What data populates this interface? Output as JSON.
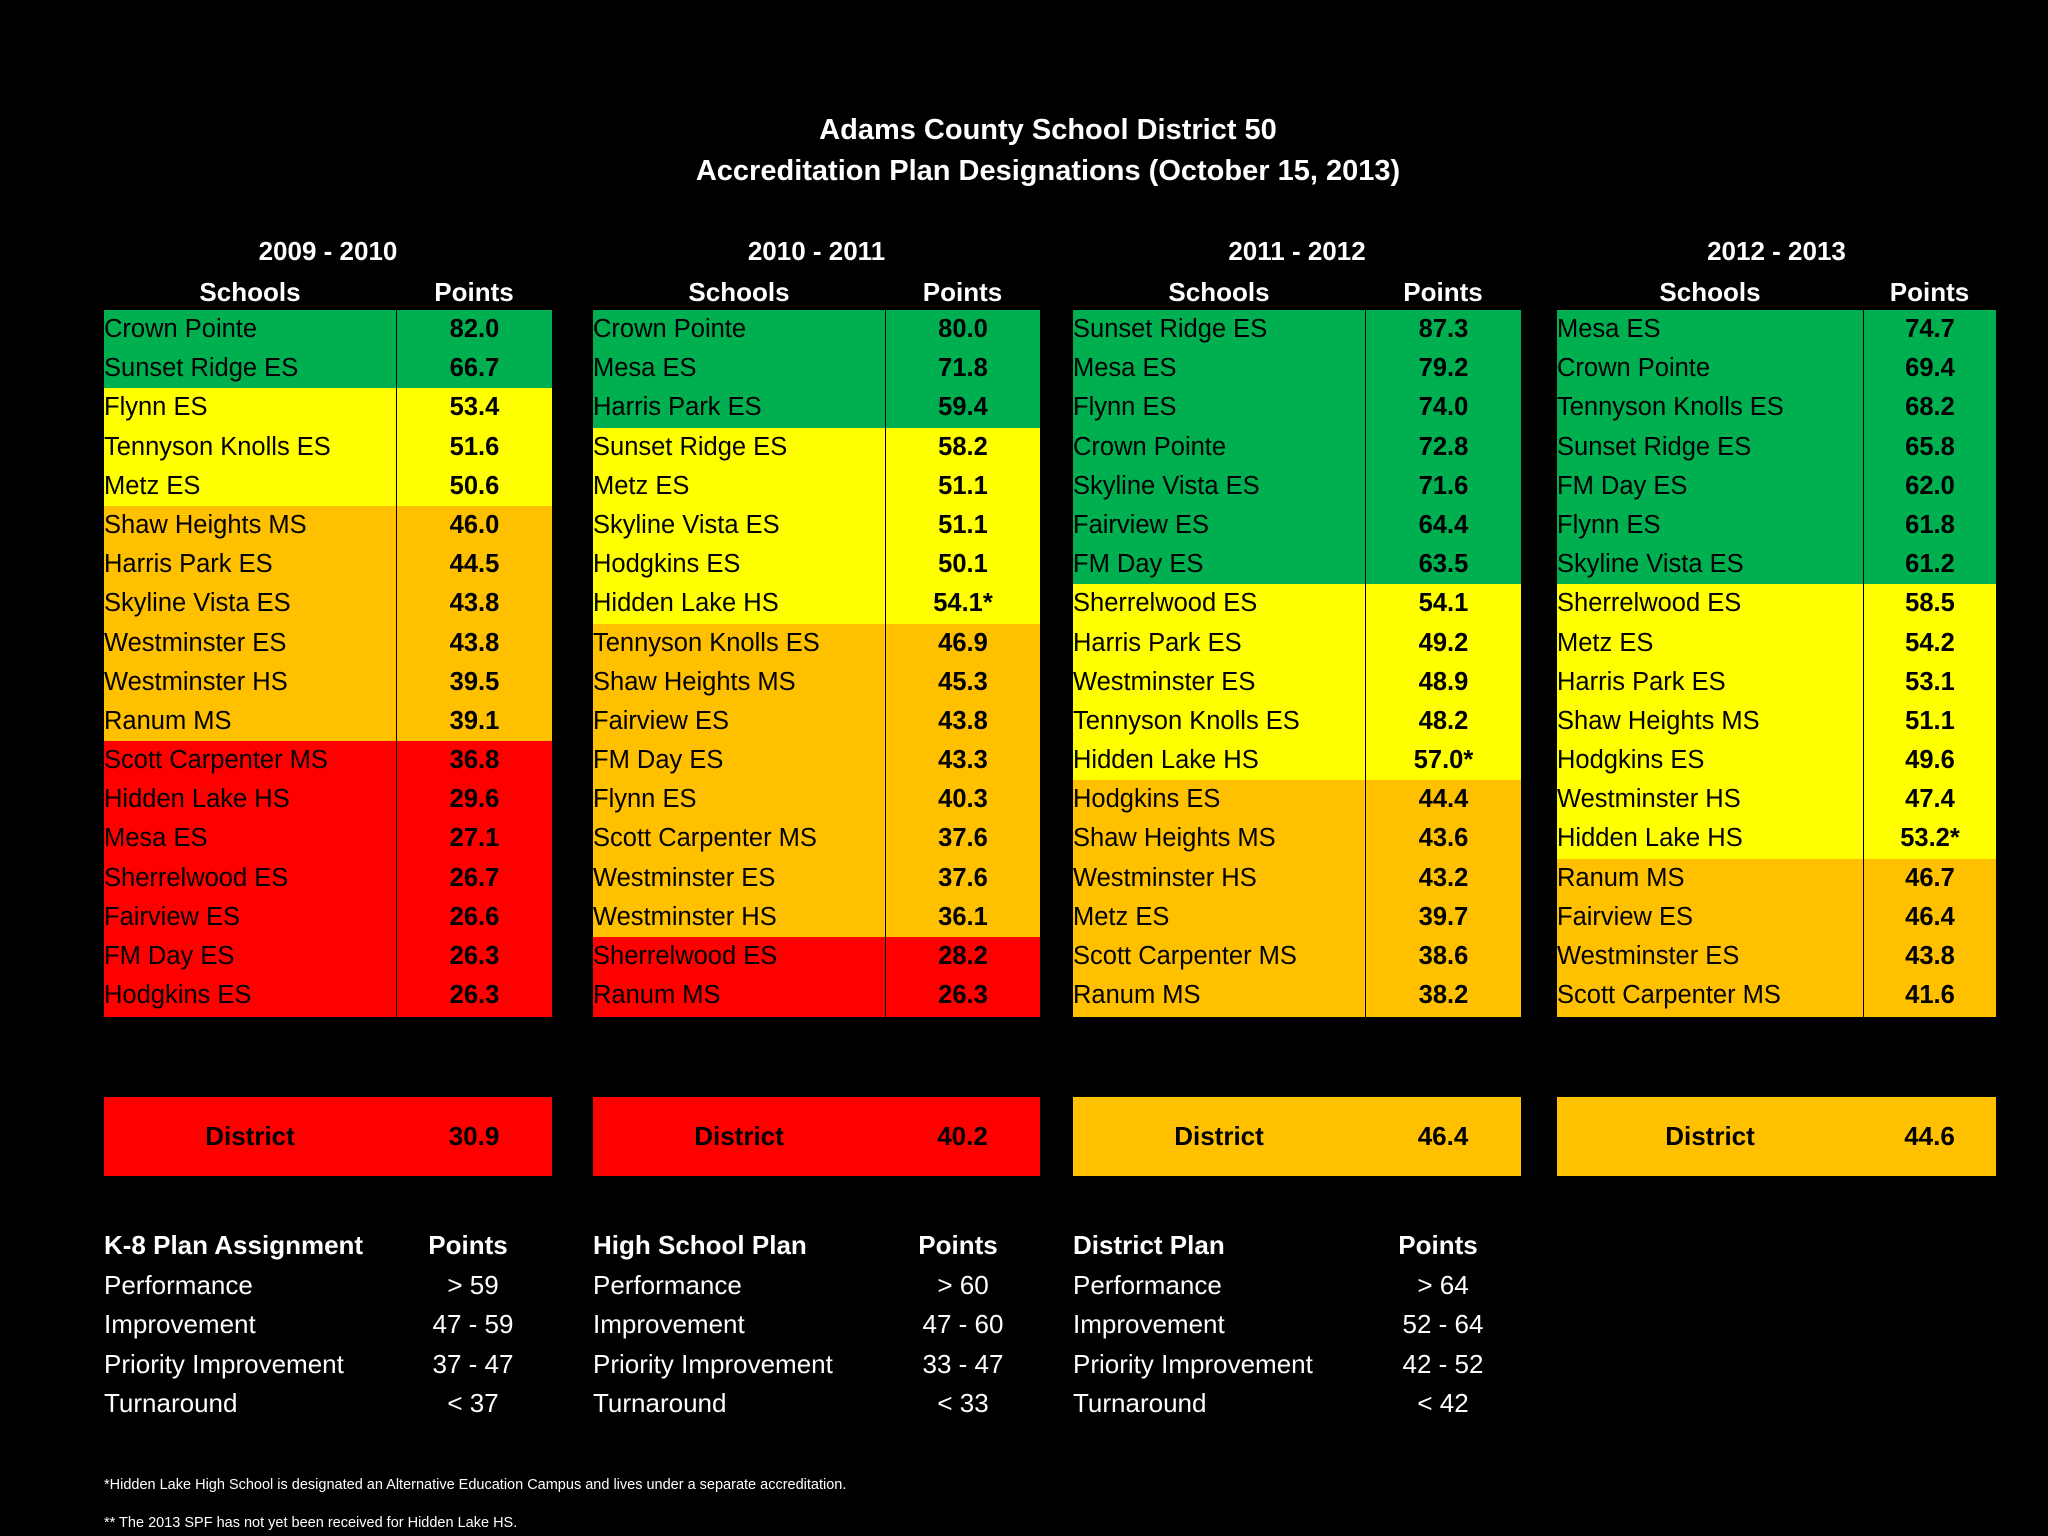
{
  "title": {
    "line1": "Adams County School District 50",
    "line2": "Accreditation Plan Designations (October 15, 2013)"
  },
  "colors": {
    "performance": "#00B050",
    "improvement": "#FFFF00",
    "priority_improvement": "#FFC000",
    "turnaround": "#FF0000"
  },
  "years": [
    {
      "label": "2009 - 2010",
      "schools_header": "Schools",
      "points_header": "Points",
      "rows": [
        {
          "school": "Crown Pointe",
          "points": "82.0",
          "rating": "performance"
        },
        {
          "school": "Sunset Ridge ES",
          "points": "66.7",
          "rating": "performance"
        },
        {
          "school": "Flynn ES",
          "points": "53.4",
          "rating": "improvement"
        },
        {
          "school": "Tennyson Knolls ES",
          "points": "51.6",
          "rating": "improvement"
        },
        {
          "school": "Metz ES",
          "points": "50.6",
          "rating": "improvement"
        },
        {
          "school": "Shaw Heights MS",
          "points": "46.0",
          "rating": "priority_improvement"
        },
        {
          "school": "Harris Park ES",
          "points": "44.5",
          "rating": "priority_improvement"
        },
        {
          "school": "Skyline Vista ES",
          "points": "43.8",
          "rating": "priority_improvement"
        },
        {
          "school": "Westminster ES",
          "points": "43.8",
          "rating": "priority_improvement"
        },
        {
          "school": "Westminster HS",
          "points": "39.5",
          "rating": "priority_improvement"
        },
        {
          "school": "Ranum MS",
          "points": "39.1",
          "rating": "priority_improvement"
        },
        {
          "school": "Scott Carpenter MS",
          "points": "36.8",
          "rating": "turnaround"
        },
        {
          "school": "Hidden Lake HS",
          "points": "29.6",
          "rating": "turnaround"
        },
        {
          "school": "Mesa ES",
          "points": "27.1",
          "rating": "turnaround"
        },
        {
          "school": "Sherrelwood ES",
          "points": "26.7",
          "rating": "turnaround"
        },
        {
          "school": "Fairview ES",
          "points": "26.6",
          "rating": "turnaround"
        },
        {
          "school": "FM Day ES",
          "points": "26.3",
          "rating": "turnaround"
        },
        {
          "school": "Hodgkins ES",
          "points": "26.3",
          "rating": "turnaround"
        }
      ],
      "district": {
        "label": "District",
        "points": "30.9",
        "rating": "turnaround"
      }
    },
    {
      "label": "2010 - 2011",
      "schools_header": "Schools",
      "points_header": "Points",
      "rows": [
        {
          "school": "Crown Pointe",
          "points": "80.0",
          "rating": "performance"
        },
        {
          "school": "Mesa ES",
          "points": "71.8",
          "rating": "performance"
        },
        {
          "school": "Harris Park ES",
          "points": "59.4",
          "rating": "performance"
        },
        {
          "school": "Sunset Ridge ES",
          "points": "58.2",
          "rating": "improvement"
        },
        {
          "school": "Metz ES",
          "points": "51.1",
          "rating": "improvement"
        },
        {
          "school": "Skyline Vista ES",
          "points": "51.1",
          "rating": "improvement"
        },
        {
          "school": "Hodgkins ES",
          "points": "50.1",
          "rating": "improvement"
        },
        {
          "school": "Hidden Lake HS",
          "points": "54.1*",
          "rating": "improvement"
        },
        {
          "school": "Tennyson Knolls ES",
          "points": "46.9",
          "rating": "priority_improvement"
        },
        {
          "school": "Shaw Heights MS",
          "points": "45.3",
          "rating": "priority_improvement"
        },
        {
          "school": "Fairview ES",
          "points": "43.8",
          "rating": "priority_improvement"
        },
        {
          "school": "FM Day ES",
          "points": "43.3",
          "rating": "priority_improvement"
        },
        {
          "school": "Flynn ES",
          "points": "40.3",
          "rating": "priority_improvement"
        },
        {
          "school": "Scott Carpenter MS",
          "points": "37.6",
          "rating": "priority_improvement"
        },
        {
          "school": "Westminster ES",
          "points": "37.6",
          "rating": "priority_improvement"
        },
        {
          "school": "Westminster HS",
          "points": "36.1",
          "rating": "priority_improvement"
        },
        {
          "school": "Sherrelwood ES",
          "points": "28.2",
          "rating": "turnaround"
        },
        {
          "school": "Ranum MS",
          "points": "26.3",
          "rating": "turnaround"
        }
      ],
      "district": {
        "label": "District",
        "points": "40.2",
        "rating": "turnaround"
      }
    },
    {
      "label": "2011 - 2012",
      "schools_header": "Schools",
      "points_header": "Points",
      "rows": [
        {
          "school": "Sunset Ridge ES",
          "points": "87.3",
          "rating": "performance"
        },
        {
          "school": "Mesa ES",
          "points": "79.2",
          "rating": "performance"
        },
        {
          "school": "Flynn ES",
          "points": "74.0",
          "rating": "performance"
        },
        {
          "school": "Crown Pointe",
          "points": "72.8",
          "rating": "performance"
        },
        {
          "school": "Skyline Vista ES",
          "points": "71.6",
          "rating": "performance"
        },
        {
          "school": "Fairview ES",
          "points": "64.4",
          "rating": "performance"
        },
        {
          "school": "FM Day ES",
          "points": "63.5",
          "rating": "performance"
        },
        {
          "school": "Sherrelwood ES",
          "points": "54.1",
          "rating": "improvement"
        },
        {
          "school": "Harris Park ES",
          "points": "49.2",
          "rating": "improvement"
        },
        {
          "school": "Westminster ES",
          "points": "48.9",
          "rating": "improvement"
        },
        {
          "school": "Tennyson Knolls ES",
          "points": "48.2",
          "rating": "improvement"
        },
        {
          "school": "Hidden Lake HS",
          "points": "57.0*",
          "rating": "improvement"
        },
        {
          "school": "Hodgkins ES",
          "points": "44.4",
          "rating": "priority_improvement"
        },
        {
          "school": "Shaw Heights MS",
          "points": "43.6",
          "rating": "priority_improvement"
        },
        {
          "school": "Westminster HS",
          "points": "43.2",
          "rating": "priority_improvement"
        },
        {
          "school": "Metz ES",
          "points": "39.7",
          "rating": "priority_improvement"
        },
        {
          "school": "Scott Carpenter MS",
          "points": "38.6",
          "rating": "priority_improvement"
        },
        {
          "school": "Ranum MS",
          "points": "38.2",
          "rating": "priority_improvement"
        }
      ],
      "district": {
        "label": "District",
        "points": "46.4",
        "rating": "priority_improvement"
      }
    },
    {
      "label": "2012 - 2013",
      "schools_header": "Schools",
      "points_header": "Points",
      "rows": [
        {
          "school": "Mesa ES",
          "points": "74.7",
          "rating": "performance"
        },
        {
          "school": "Crown Pointe",
          "points": "69.4",
          "rating": "performance"
        },
        {
          "school": "Tennyson Knolls ES",
          "points": "68.2",
          "rating": "performance"
        },
        {
          "school": "Sunset Ridge ES",
          "points": "65.8",
          "rating": "performance"
        },
        {
          "school": "FM Day ES",
          "points": "62.0",
          "rating": "performance"
        },
        {
          "school": "Flynn ES",
          "points": "61.8",
          "rating": "performance"
        },
        {
          "school": "Skyline Vista ES",
          "points": "61.2",
          "rating": "performance"
        },
        {
          "school": "Sherrelwood ES",
          "points": "58.5",
          "rating": "improvement"
        },
        {
          "school": "Metz ES",
          "points": "54.2",
          "rating": "improvement"
        },
        {
          "school": "Harris Park ES",
          "points": "53.1",
          "rating": "improvement"
        },
        {
          "school": "Shaw Heights MS",
          "points": "51.1",
          "rating": "improvement"
        },
        {
          "school": "Hodgkins ES",
          "points": "49.6",
          "rating": "improvement"
        },
        {
          "school": "Westminster HS",
          "points": "47.4",
          "rating": "improvement"
        },
        {
          "school": "Hidden Lake HS",
          "points": "53.2*",
          "rating": "improvement"
        },
        {
          "school": "Ranum MS",
          "points": "46.7",
          "rating": "priority_improvement"
        },
        {
          "school": "Fairview ES",
          "points": "46.4",
          "rating": "priority_improvement"
        },
        {
          "school": "Westminster ES",
          "points": "43.8",
          "rating": "priority_improvement"
        },
        {
          "school": "Scott Carpenter MS",
          "points": "41.6",
          "rating": "priority_improvement"
        }
      ],
      "district": {
        "label": "District",
        "points": "44.6",
        "rating": "priority_improvement"
      }
    }
  ],
  "legends": [
    {
      "title": "K-8 Plan Assignment",
      "points_header": "Points",
      "rows": [
        {
          "name": "Performance",
          "range": "> 59"
        },
        {
          "name": "Improvement",
          "range": "47 - 59"
        },
        {
          "name": "Priority Improvement",
          "range": "37 - 47"
        },
        {
          "name": "Turnaround",
          "range": "< 37"
        }
      ]
    },
    {
      "title": "High School Plan",
      "points_header": "Points",
      "rows": [
        {
          "name": "Performance",
          "range": "> 60"
        },
        {
          "name": "Improvement",
          "range": "47 - 60"
        },
        {
          "name": "Priority Improvement",
          "range": "33 - 47"
        },
        {
          "name": "Turnaround",
          "range": "< 33"
        }
      ]
    },
    {
      "title": "District Plan",
      "points_header": "Points",
      "rows": [
        {
          "name": "Performance",
          "range": "> 64"
        },
        {
          "name": "Improvement",
          "range": "52 - 64"
        },
        {
          "name": "Priority Improvement",
          "range": "42 - 52"
        },
        {
          "name": "Turnaround",
          "range": "< 42"
        }
      ]
    }
  ],
  "notes": [
    "*Hidden Lake High School is designated an Alternative Education Campus and lives under a separate accreditation.",
    "** The 2013 SPF has not yet been received for Hidden Lake HS."
  ]
}
